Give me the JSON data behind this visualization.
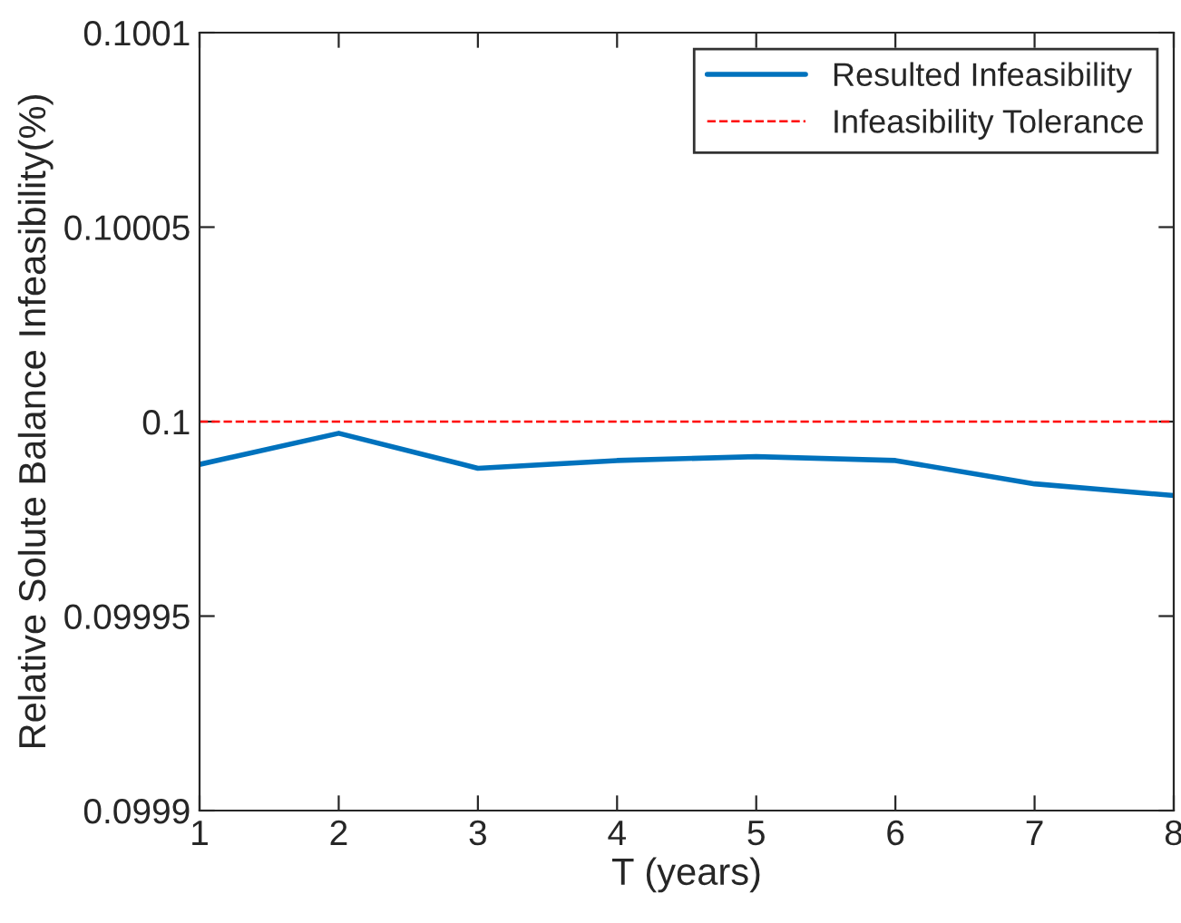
{
  "chart_data": {
    "type": "line",
    "xlabel": "T (years)",
    "ylabel": "Relative Solute Balance Infeasibility(%)",
    "x": [
      1,
      2,
      3,
      4,
      5,
      6,
      7,
      8
    ],
    "series": [
      {
        "name": "Resulted Infeasibility",
        "color": "#0072bd",
        "values": [
          0.099989,
          0.099997,
          0.099988,
          0.09999,
          0.099991,
          0.09999,
          0.099984,
          0.099981
        ]
      }
    ],
    "ref_lines": [
      {
        "axis": "y",
        "value": 0.1,
        "label": "Infeasibility Tolerance",
        "color": "#ff0000",
        "line_style": "dashed"
      }
    ],
    "xlim": [
      1,
      8
    ],
    "xticks": [
      1,
      2,
      3,
      4,
      5,
      6,
      7,
      8
    ],
    "ylim": [
      0.0999,
      0.1001
    ],
    "yticks": [
      0.0999,
      0.09995,
      0.1,
      0.10005,
      0.1001
    ],
    "grid": false,
    "legend": "top right",
    "marker": "none",
    "line_style": "solid"
  }
}
